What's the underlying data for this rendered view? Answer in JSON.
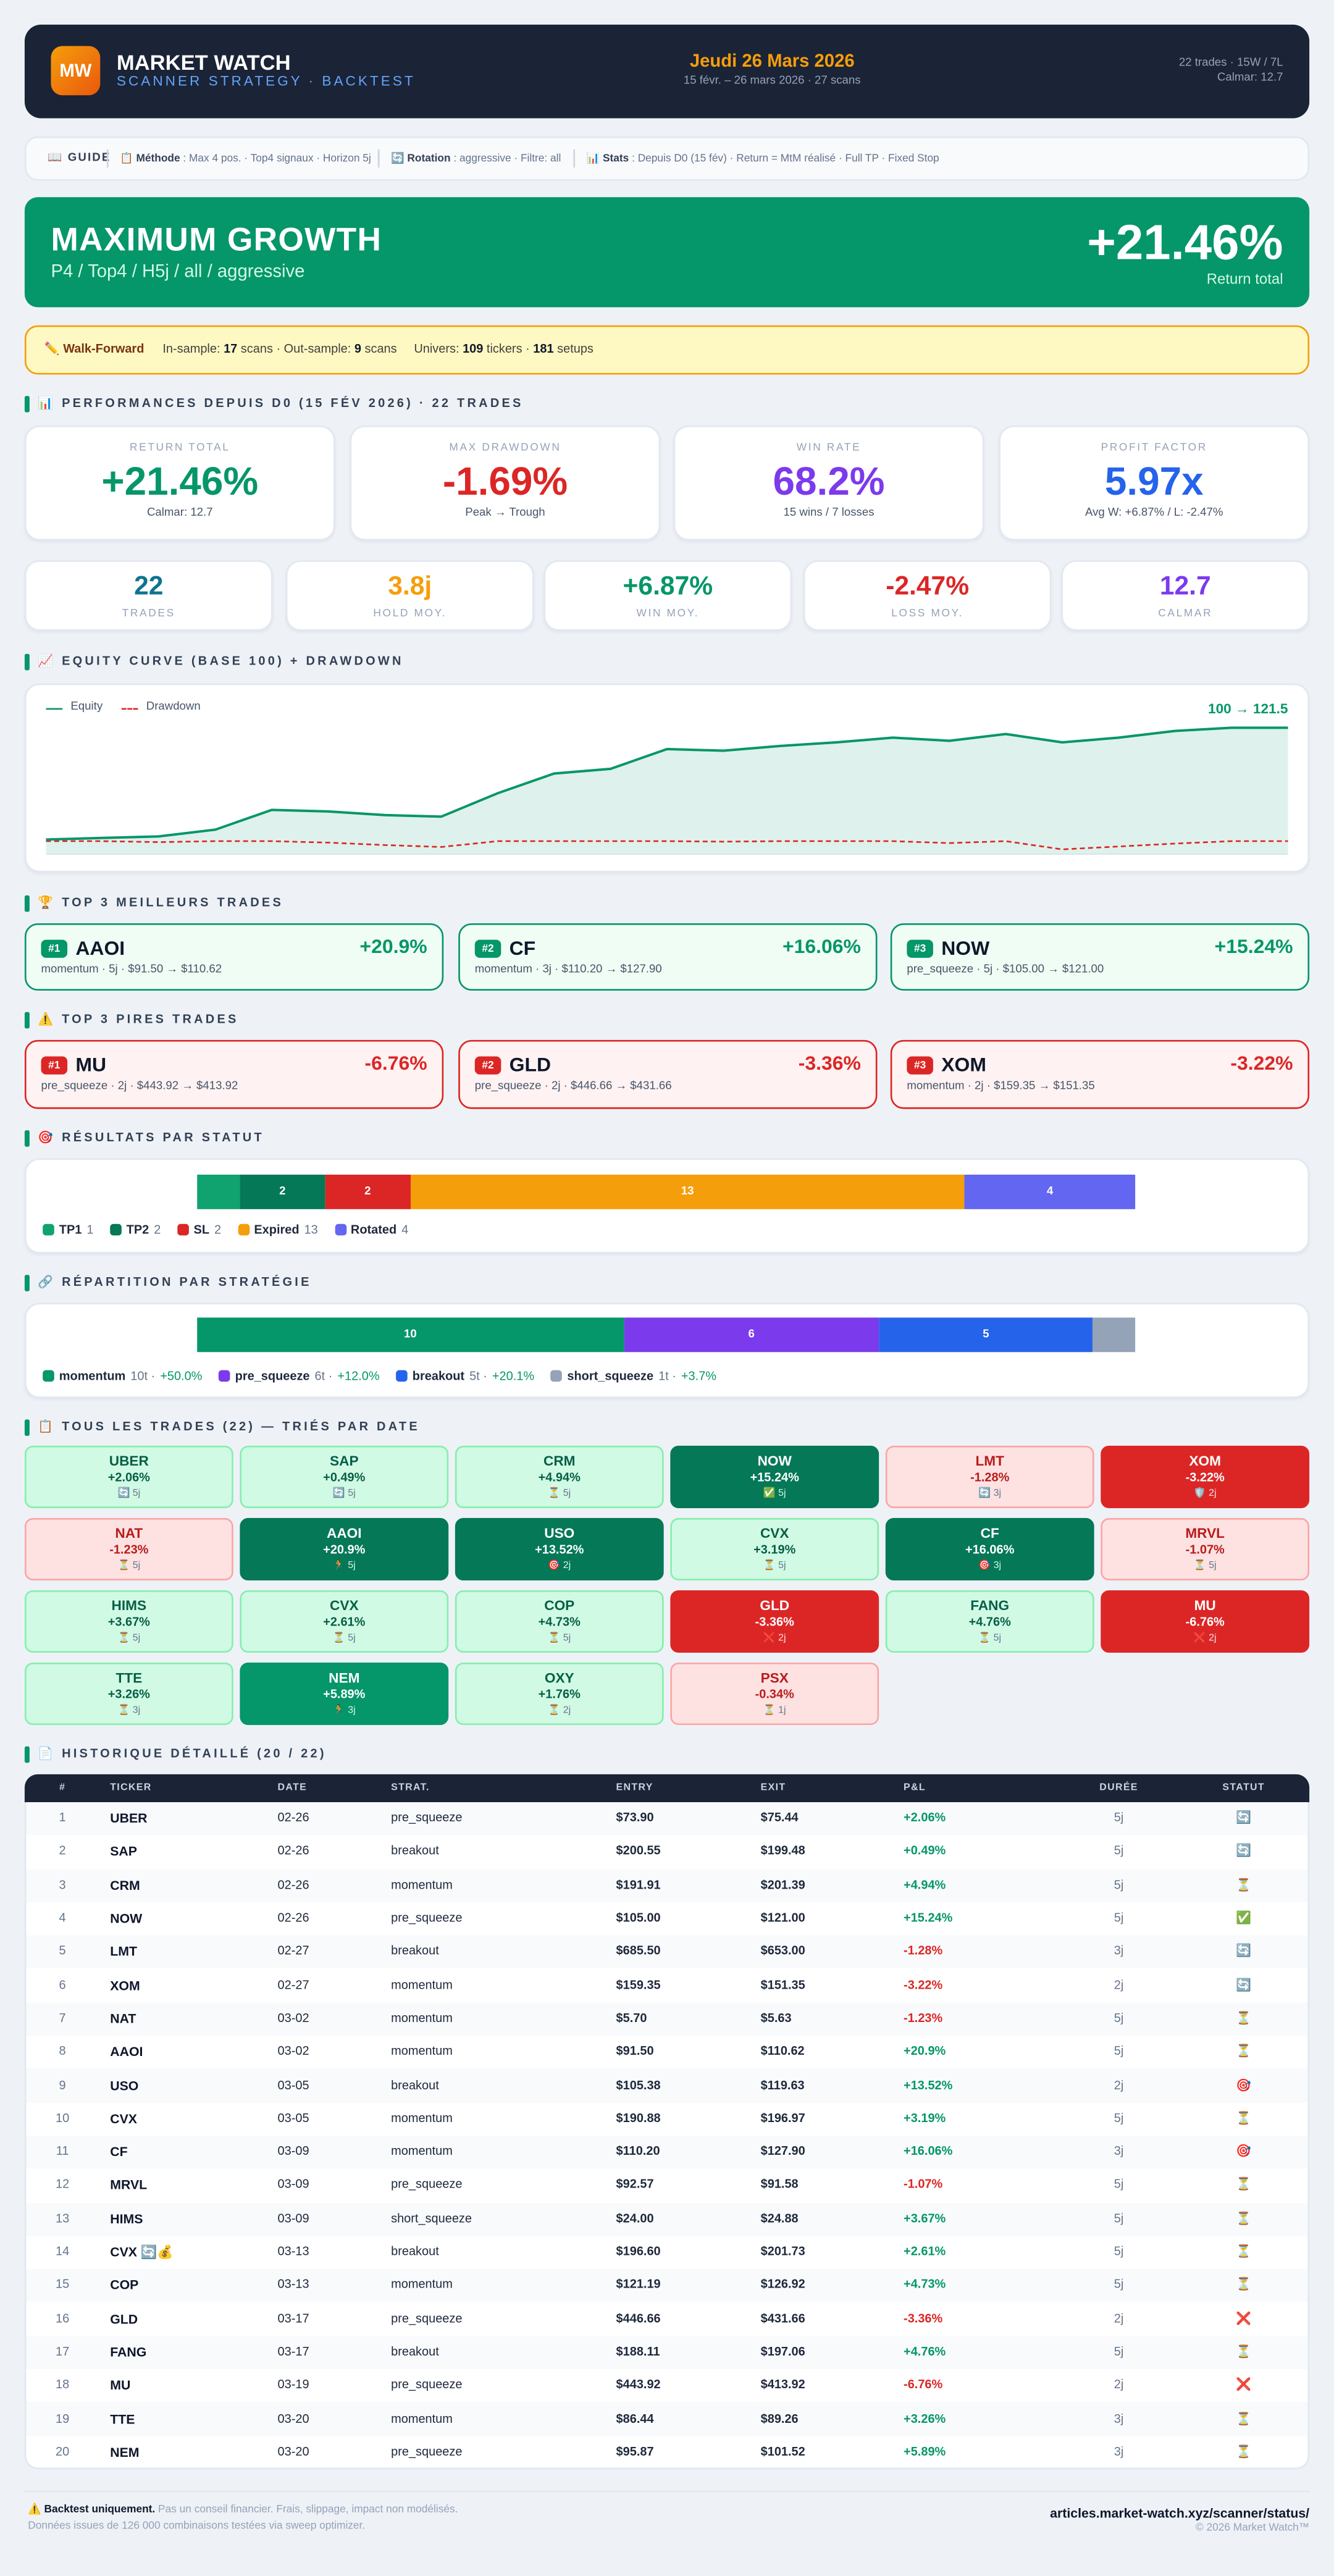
{
  "header": {
    "logo": "MW",
    "title": "MARKET WATCH",
    "subtitle": "SCANNER STRATEGY · BACKTEST",
    "date": "Jeudi 26 Mars 2026",
    "range": "15 févr. – 26 mars 2026 · 27 scans",
    "summary": "22 trades · 15W / 7L",
    "calmar": "Calmar: 12.7"
  },
  "guide": {
    "label": "📖 GUIDE",
    "items": [
      {
        "name": "📋 Méthode",
        "text": " : Max 4 pos. · Top4 signaux · Horizon 5j"
      },
      {
        "name": "🔄 Rotation",
        "text": " : aggressive · Filtre: all"
      },
      {
        "name": "📊 Stats",
        "text": " : Depuis D0 (15 fév) · Return = MtM réalisé · Full TP · Fixed Stop"
      }
    ]
  },
  "hero": {
    "title": "MAXIMUM GROWTH",
    "subtitle": "P4 / Top4 / H5j / all / aggressive",
    "value": "+21.46%",
    "value_label": "Return total"
  },
  "walk_forward": {
    "label": "✏️ Walk-Forward",
    "parts": [
      "In-sample: ",
      "17",
      " scans · Out-sample: ",
      "9",
      " scans"
    ],
    "parts2": [
      "Univers: ",
      "109",
      " tickers · ",
      "181",
      " setups"
    ]
  },
  "performance": {
    "title": "📊 PERFORMANCES DEPUIS D0 (15 FÉV 2026) · 22 TRADES",
    "main": [
      {
        "label": "RETURN TOTAL",
        "value": "+21.46%",
        "sub": "Calmar: 12.7",
        "color": "#059669"
      },
      {
        "label": "MAX DRAWDOWN",
        "value": "-1.69%",
        "sub": "Peak → Trough",
        "color": "#dc2626"
      },
      {
        "label": "WIN RATE",
        "value": "68.2%",
        "sub": "15 wins / 7 losses",
        "color": "#7c3aed"
      },
      {
        "label": "PROFIT FACTOR",
        "value": "5.97x",
        "sub": "Avg W: +6.87% / L: -2.47%",
        "color": "#2563eb"
      }
    ],
    "secondary": [
      {
        "label": "TRADES",
        "value": "22",
        "color": "#0e7490"
      },
      {
        "label": "HOLD MOY.",
        "value": "3.8j",
        "color": "#f59e0b"
      },
      {
        "label": "WIN MOY.",
        "value": "+6.87%",
        "color": "#059669"
      },
      {
        "label": "LOSS MOY.",
        "value": "-2.47%",
        "color": "#dc2626"
      },
      {
        "label": "CALMAR",
        "value": "12.7",
        "color": "#7c3aed"
      }
    ]
  },
  "chart_data": [
    {
      "type": "line",
      "title": "📈 EQUITY CURVE (BASE 100) + DRAWDOWN",
      "annotation": "100 → 121.5",
      "categories": [
        null,
        null,
        null,
        null,
        null,
        null,
        null,
        null,
        null,
        null,
        null,
        null,
        null,
        null,
        null,
        null,
        null,
        null,
        null,
        null,
        null,
        null,
        null
      ],
      "series": [
        {
          "name": "Equity",
          "color": "#059669",
          "values": [
            100,
            100.3,
            100.6,
            101.9,
            105.7,
            105.4,
            104.7,
            104.4,
            108.9,
            112.7,
            113.6,
            117.4,
            117.1,
            118.0,
            118.7,
            119.6,
            119.0,
            120.3,
            118.7,
            119.6,
            120.9,
            121.5,
            121.5
          ]
        },
        {
          "name": "Drawdown",
          "color": "#dc2626",
          "axis": "y2",
          "values": [
            0,
            0,
            -0.2,
            0,
            0,
            -0.3,
            -0.8,
            -1.2,
            0,
            0,
            0,
            0,
            -0.1,
            0,
            0,
            0,
            -0.4,
            0,
            -1.69,
            -1.1,
            -0.5,
            0,
            0
          ]
        }
      ]
    },
    {
      "type": "stacked_bar",
      "title": "🎯 RÉSULTATS PAR STATUT",
      "categories": [
        "TP1",
        "TP2",
        "SL",
        "Expired",
        "Rotated"
      ],
      "values": [
        1,
        2,
        2,
        13,
        4
      ],
      "colors": [
        "#10a36f",
        "#047857",
        "#dc2626",
        "#f59e0b",
        "#6366f1"
      ]
    },
    {
      "type": "stacked_bar",
      "title": "🔗 RÉPARTITION PAR STRATÉGIE",
      "categories": [
        "momentum",
        "pre_squeeze",
        "breakout",
        "short_squeeze"
      ],
      "values": [
        10,
        6,
        5,
        1
      ],
      "colors": [
        "#059669",
        "#7c3aed",
        "#2563eb",
        "#94a3b8"
      ],
      "legend_counts": [
        "10t ·",
        "6t ·",
        "5t ·",
        "1t ·"
      ],
      "legend_returns": [
        "+50.0%",
        "+12.0%",
        "+20.1%",
        "+3.7%"
      ]
    }
  ],
  "best": {
    "title": "🏆 TOP 3 MEILLEURS TRADES",
    "items": [
      {
        "rank": "#1",
        "ticker": "AAOI",
        "pnl": "+20.9%",
        "detail": "momentum · 5j · $91.50 → $110.62"
      },
      {
        "rank": "#2",
        "ticker": "CF",
        "pnl": "+16.06%",
        "detail": "momentum · 3j · $110.20 → $127.90"
      },
      {
        "rank": "#3",
        "ticker": "NOW",
        "pnl": "+15.24%",
        "detail": "pre_squeeze · 5j · $105.00 → $121.00"
      }
    ]
  },
  "worst": {
    "title": "⚠️ TOP 3 PIRES TRADES",
    "items": [
      {
        "rank": "#1",
        "ticker": "MU",
        "pnl": "-6.76%",
        "detail": "pre_squeeze · 2j · $443.92 → $413.92"
      },
      {
        "rank": "#2",
        "ticker": "GLD",
        "pnl": "-3.36%",
        "detail": "pre_squeeze · 2j · $446.66 → $431.66"
      },
      {
        "rank": "#3",
        "ticker": "XOM",
        "pnl": "-3.22%",
        "detail": "momentum · 2j · $159.35 → $151.35"
      }
    ]
  },
  "tiles": {
    "title": "📋 TOUS LES TRADES (22) — TRIÉS PAR DATE",
    "items": [
      {
        "ticker": "UBER",
        "pnl": "+2.06%",
        "meta": "🔄 5j"
      },
      {
        "ticker": "SAP",
        "pnl": "+0.49%",
        "meta": "🔄 5j"
      },
      {
        "ticker": "CRM",
        "pnl": "+4.94%",
        "meta": "⏳ 5j"
      },
      {
        "ticker": "NOW",
        "pnl": "+15.24%",
        "meta": "✅ 5j"
      },
      {
        "ticker": "LMT",
        "pnl": "-1.28%",
        "meta": "🔄 3j"
      },
      {
        "ticker": "XOM",
        "pnl": "-3.22%",
        "meta": "🛡️ 2j"
      },
      {
        "ticker": "NAT",
        "pnl": "-1.23%",
        "meta": "⏳ 5j"
      },
      {
        "ticker": "AAOI",
        "pnl": "+20.9%",
        "meta": "🏃 5j"
      },
      {
        "ticker": "USO",
        "pnl": "+13.52%",
        "meta": "🎯 2j"
      },
      {
        "ticker": "CVX",
        "pnl": "+3.19%",
        "meta": "⏳ 5j"
      },
      {
        "ticker": "CF",
        "pnl": "+16.06%",
        "meta": "🎯 3j"
      },
      {
        "ticker": "MRVL",
        "pnl": "-1.07%",
        "meta": "⏳ 5j"
      },
      {
        "ticker": "HIMS",
        "pnl": "+3.67%",
        "meta": "⏳ 5j"
      },
      {
        "ticker": "CVX",
        "pnl": "+2.61%",
        "meta": "⏳ 5j"
      },
      {
        "ticker": "COP",
        "pnl": "+4.73%",
        "meta": "⏳ 5j"
      },
      {
        "ticker": "GLD",
        "pnl": "-3.36%",
        "meta": "❌ 2j"
      },
      {
        "ticker": "FANG",
        "pnl": "+4.76%",
        "meta": "⏳ 5j"
      },
      {
        "ticker": "MU",
        "pnl": "-6.76%",
        "meta": "❌ 2j"
      },
      {
        "ticker": "TTE",
        "pnl": "+3.26%",
        "meta": "⏳ 3j"
      },
      {
        "ticker": "NEM",
        "pnl": "+5.89%",
        "meta": "🏃 3j"
      },
      {
        "ticker": "OXY",
        "pnl": "+1.76%",
        "meta": "⏳ 2j"
      },
      {
        "ticker": "PSX",
        "pnl": "-0.34%",
        "meta": "⏳ 1j"
      }
    ]
  },
  "history": {
    "title": "📄 HISTORIQUE DÉTAILLÉ (20 / 22)",
    "columns": [
      "#",
      "TICKER",
      "DATE",
      "STRAT.",
      "ENTRY",
      "EXIT",
      "P&L",
      "DURÉE",
      "STATUT"
    ],
    "rows": [
      [
        1,
        "UBER",
        "02-26",
        "pre_squeeze",
        "$73.90",
        "$75.44",
        "+2.06%",
        "5j",
        "🔄"
      ],
      [
        2,
        "SAP",
        "02-26",
        "breakout",
        "$200.55",
        "$199.48",
        "+0.49%",
        "5j",
        "🔄"
      ],
      [
        3,
        "CRM",
        "02-26",
        "momentum",
        "$191.91",
        "$201.39",
        "+4.94%",
        "5j",
        "⏳"
      ],
      [
        4,
        "NOW",
        "02-26",
        "pre_squeeze",
        "$105.00",
        "$121.00",
        "+15.24%",
        "5j",
        "✅"
      ],
      [
        5,
        "LMT",
        "02-27",
        "breakout",
        "$685.50",
        "$653.00",
        "-1.28%",
        "3j",
        "🔄"
      ],
      [
        6,
        "XOM",
        "02-27",
        "momentum",
        "$159.35",
        "$151.35",
        "-3.22%",
        "2j",
        "🔄"
      ],
      [
        7,
        "NAT",
        "03-02",
        "momentum",
        "$5.70",
        "$5.63",
        "-1.23%",
        "5j",
        "⏳"
      ],
      [
        8,
        "AAOI",
        "03-02",
        "momentum",
        "$91.50",
        "$110.62",
        "+20.9%",
        "5j",
        "⏳"
      ],
      [
        9,
        "USO",
        "03-05",
        "breakout",
        "$105.38",
        "$119.63",
        "+13.52%",
        "2j",
        "🎯"
      ],
      [
        10,
        "CVX",
        "03-05",
        "momentum",
        "$190.88",
        "$196.97",
        "+3.19%",
        "5j",
        "⏳"
      ],
      [
        11,
        "CF",
        "03-09",
        "momentum",
        "$110.20",
        "$127.90",
        "+16.06%",
        "3j",
        "🎯"
      ],
      [
        12,
        "MRVL",
        "03-09",
        "pre_squeeze",
        "$92.57",
        "$91.58",
        "-1.07%",
        "5j",
        "⏳"
      ],
      [
        13,
        "HIMS",
        "03-09",
        "short_squeeze",
        "$24.00",
        "$24.88",
        "+3.67%",
        "5j",
        "⏳"
      ],
      [
        14,
        "CVX 🔄💰",
        "03-13",
        "breakout",
        "$196.60",
        "$201.73",
        "+2.61%",
        "5j",
        "⏳"
      ],
      [
        15,
        "COP",
        "03-13",
        "momentum",
        "$121.19",
        "$126.92",
        "+4.73%",
        "5j",
        "⏳"
      ],
      [
        16,
        "GLD",
        "03-17",
        "pre_squeeze",
        "$446.66",
        "$431.66",
        "-3.36%",
        "2j",
        "❌"
      ],
      [
        17,
        "FANG",
        "03-17",
        "breakout",
        "$188.11",
        "$197.06",
        "+4.76%",
        "5j",
        "⏳"
      ],
      [
        18,
        "MU",
        "03-19",
        "pre_squeeze",
        "$443.92",
        "$413.92",
        "-6.76%",
        "2j",
        "❌"
      ],
      [
        19,
        "TTE",
        "03-20",
        "momentum",
        "$86.44",
        "$89.26",
        "+3.26%",
        "3j",
        "⏳"
      ],
      [
        20,
        "NEM",
        "03-20",
        "pre_squeeze",
        "$95.87",
        "$101.52",
        "+5.89%",
        "3j",
        "⏳"
      ]
    ]
  },
  "footer": {
    "warning": "⚠️ Backtest uniquement.",
    "note": " Pas un conseil financier. Frais, slippage, impact non modélisés.",
    "source": "Données issues de 126 000 combinaisons testées via sweep optimizer.",
    "url": "articles.market-watch.xyz/scanner/status/",
    "copyright": "© 2026 Market Watch™"
  }
}
